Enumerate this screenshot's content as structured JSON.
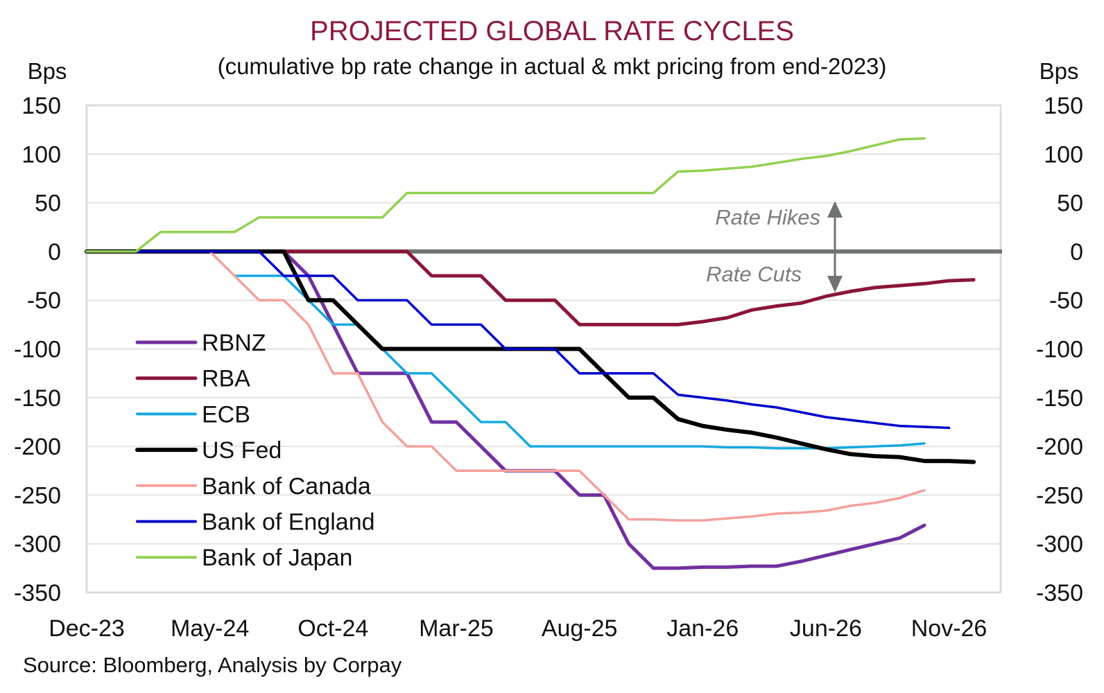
{
  "chart_data": {
    "type": "line",
    "title": "PROJECTED GLOBAL RATE CYCLES",
    "subtitle": "(cumulative bp rate change in actual & mkt pricing from end-2023)",
    "ylabel_left": "Bps",
    "ylabel_right": "Bps",
    "xlabel": "",
    "ylim": [
      -350,
      150
    ],
    "y_ticks": [
      150,
      100,
      50,
      0,
      -50,
      -100,
      -150,
      -200,
      -250,
      -300,
      -350
    ],
    "x_tick_labels": [
      "Dec-23",
      "May-24",
      "Oct-24",
      "Mar-25",
      "Aug-25",
      "Jan-26",
      "Jun-26",
      "Nov-26"
    ],
    "x_tick_month_index": [
      0,
      5,
      10,
      15,
      20,
      25,
      30,
      35
    ],
    "x_range_months": [
      0,
      37
    ],
    "x_note": "monthly observations, index 0 = Dec-23",
    "grid": true,
    "legend_position": "left-middle",
    "annotations": [
      {
        "text": "Rate Hikes",
        "direction": "up",
        "at_month": 30
      },
      {
        "text": "Rate Cuts",
        "direction": "down",
        "at_month": 30
      }
    ],
    "zero_line_color": "#6f7471",
    "series": [
      {
        "name": "RBNZ",
        "color": "#7030a0",
        "width": 5,
        "values": [
          0,
          0,
          0,
          0,
          0,
          0,
          0,
          0,
          0,
          -25,
          -75,
          -125,
          -125,
          -125,
          -175,
          -175,
          -200,
          -225,
          -225,
          -225,
          -250,
          -250,
          -300,
          -325,
          -325,
          -324,
          -324,
          -323,
          -323,
          -318,
          -312,
          -306,
          -300,
          -294,
          -281
        ]
      },
      {
        "name": "RBA",
        "color": "#8b1538",
        "width": 5,
        "values": [
          0,
          0,
          0,
          0,
          0,
          0,
          0,
          0,
          0,
          0,
          0,
          0,
          0,
          0,
          -25,
          -25,
          -25,
          -50,
          -50,
          -50,
          -75,
          -75,
          -75,
          -75,
          -75,
          -72,
          -68,
          -60,
          -56,
          -53,
          -46,
          -41,
          -37,
          -35,
          -33,
          -30,
          -29
        ]
      },
      {
        "name": "ECB",
        "color": "#16a8e0",
        "width": 3.5,
        "values": [
          null,
          null,
          null,
          null,
          null,
          null,
          -25,
          -25,
          -25,
          -50,
          -75,
          -75,
          -100,
          -125,
          -125,
          -150,
          -175,
          -175,
          -200,
          -200,
          -200,
          -200,
          -200,
          -200,
          -200,
          -200,
          -201,
          -201,
          -202,
          -202,
          -202,
          -201,
          -200,
          -199,
          -197
        ]
      },
      {
        "name": "US Fed",
        "color": "#000000",
        "width": 6,
        "values": [
          0,
          0,
          0,
          0,
          0,
          0,
          0,
          0,
          0,
          -50,
          -50,
          -75,
          -100,
          -100,
          -100,
          -100,
          -100,
          -100,
          -100,
          -100,
          -100,
          -125,
          -150,
          -150,
          -172,
          -179,
          -183,
          -186,
          -191,
          -197,
          -203,
          -208,
          -210,
          -211,
          -215,
          -215,
          -216
        ]
      },
      {
        "name": "Bank of Canada",
        "color": "#f4a09c",
        "width": 3.5,
        "values": [
          0,
          0,
          0,
          0,
          0,
          0,
          -25,
          -50,
          -50,
          -75,
          -125,
          -125,
          -175,
          -200,
          -200,
          -225,
          -225,
          -225,
          -225,
          -225,
          -225,
          -250,
          -275,
          -275,
          -276,
          -276,
          -274,
          -272,
          -269,
          -268,
          -266,
          -261,
          -258,
          -253,
          -245
        ]
      },
      {
        "name": "Bank of England",
        "color": "#0000cc",
        "width": 3.5,
        "values": [
          0,
          0,
          0,
          0,
          0,
          0,
          0,
          0,
          -25,
          -25,
          -25,
          -50,
          -50,
          -50,
          -75,
          -75,
          -75,
          -100,
          -100,
          -100,
          -125,
          -125,
          -125,
          -125,
          -147,
          -150,
          -153,
          -157,
          -160,
          -165,
          -170,
          -173,
          -176,
          -179,
          -180,
          -181
        ]
      },
      {
        "name": "Bank of Japan",
        "color": "#92d050",
        "width": 3.5,
        "values": [
          0,
          0,
          0,
          20,
          20,
          20,
          20,
          35,
          35,
          35,
          35,
          35,
          35,
          60,
          60,
          60,
          60,
          60,
          60,
          60,
          60,
          60,
          60,
          60,
          82,
          83,
          85,
          87,
          91,
          95,
          98,
          103,
          109,
          115,
          116
        ]
      }
    ]
  },
  "source": "Source: Bloomberg, Analysis by Corpay"
}
